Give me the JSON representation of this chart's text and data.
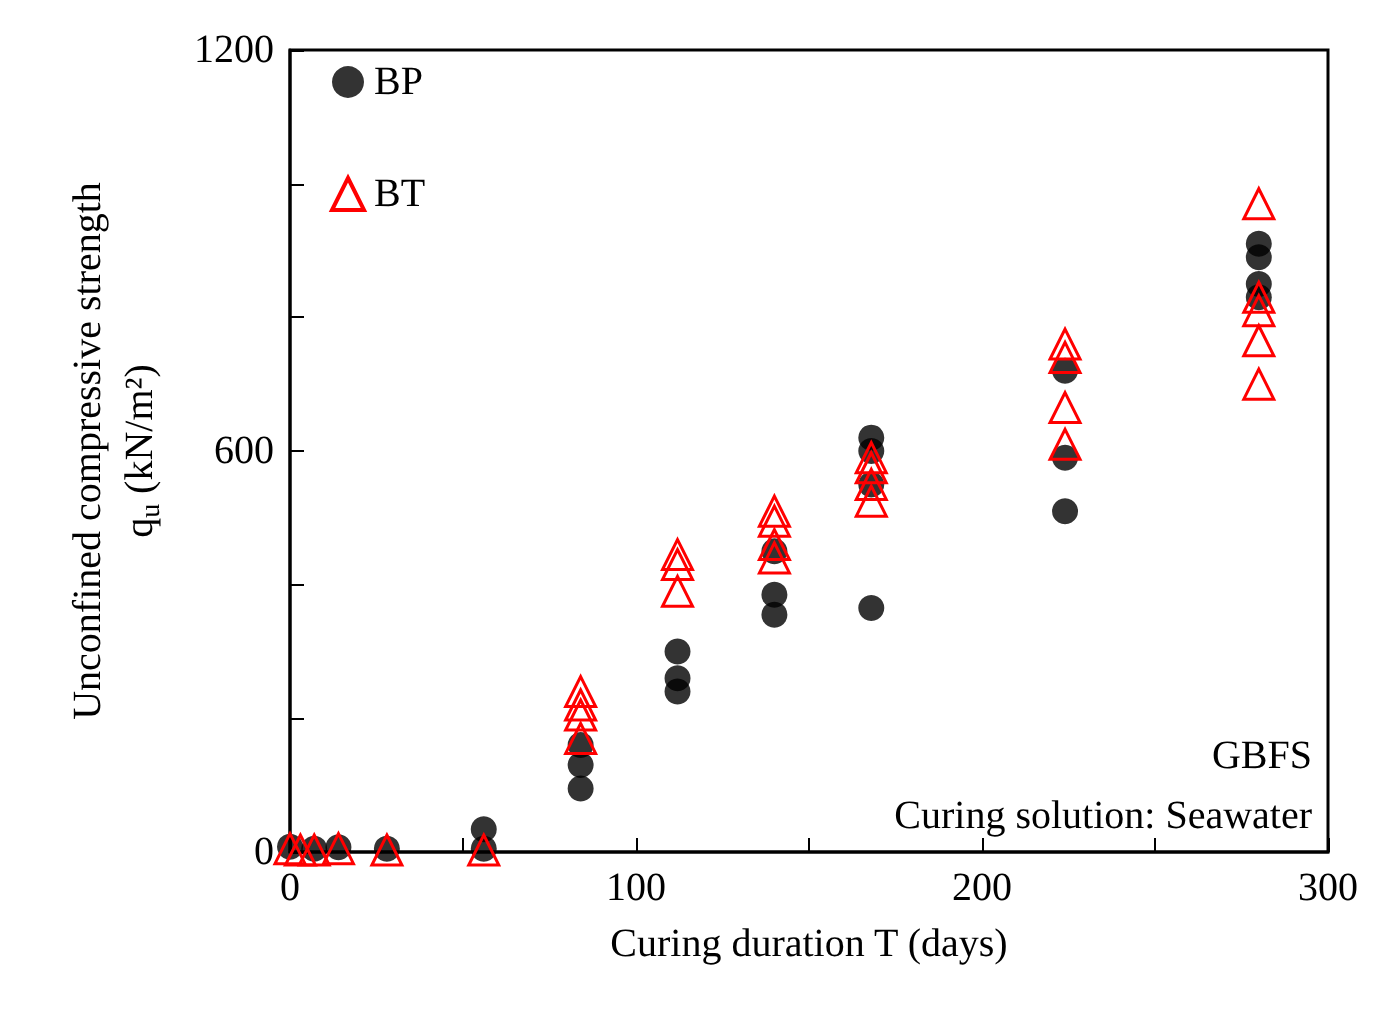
{
  "chart_data": {
    "type": "scatter",
    "xlabel": "Curing duration T (days)",
    "ylabel": "Unconfined compressive strength\nq$_{u}$ (kN/m²)",
    "xlim": [
      0,
      300
    ],
    "xticks": [
      0,
      {
        "value": 50,
        "label": null
      },
      100,
      {
        "value": 150,
        "label": null
      },
      200,
      {
        "value": 250,
        "label": null
      },
      300
    ],
    "ylim": [
      0,
      1200
    ],
    "yticks": [
      0,
      {
        "value": 200,
        "label": null
      },
      {
        "value": 400,
        "label": null
      },
      600,
      {
        "value": 800,
        "label": null
      },
      {
        "value": 1000,
        "label": null
      },
      1200
    ],
    "grid": false,
    "legend": "top left",
    "annotations": [
      "GBFS",
      "Curing solution: Seawater"
    ],
    "series": [
      {
        "name": "BP",
        "color": "#000000",
        "marker": "circle",
        "x": [
          0,
          7,
          14,
          28,
          56,
          56,
          84,
          84,
          84,
          112,
          112,
          112,
          140,
          140,
          140,
          168,
          168,
          168,
          168,
          224,
          224,
          224,
          280,
          280,
          280,
          280
        ],
        "values": [
          8,
          5,
          7,
          5,
          34,
          5,
          160,
          130,
          95,
          300,
          260,
          240,
          450,
          385,
          355,
          620,
          600,
          550,
          365,
          720,
          590,
          510,
          910,
          890,
          850,
          830
        ]
      },
      {
        "name": "BT",
        "color": "#ff0000",
        "marker": "triangle",
        "x": [
          0,
          3,
          7,
          14,
          28,
          56,
          84,
          84,
          84,
          84,
          112,
          112,
          112,
          140,
          140,
          140,
          140,
          168,
          168,
          168,
          168,
          224,
          224,
          224,
          224,
          280,
          280,
          280,
          280,
          280
        ],
        "values": [
          5,
          3,
          3,
          5,
          3,
          3,
          240,
          220,
          205,
          170,
          445,
          430,
          390,
          510,
          495,
          460,
          440,
          590,
          575,
          550,
          525,
          760,
          740,
          665,
          610,
          970,
          830,
          810,
          765,
          700
        ]
      }
    ]
  }
}
